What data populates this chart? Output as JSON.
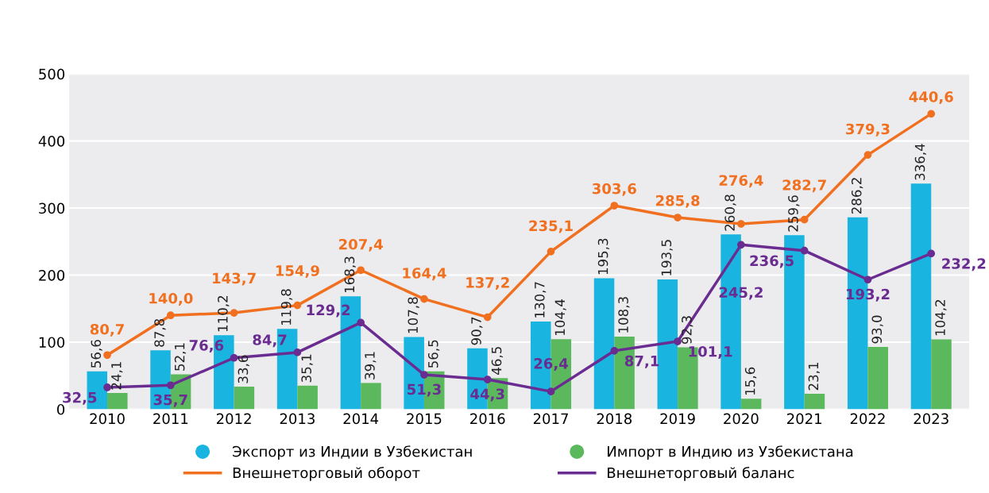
{
  "chart_data": {
    "type": "bar",
    "categories": [
      "2010",
      "2011",
      "2012",
      "2013",
      "2014",
      "2015",
      "2016",
      "2017",
      "2018",
      "2019",
      "2020",
      "2021",
      "2022",
      "2023"
    ],
    "series": [
      {
        "name": "Экспорт из Индии в Узбекистан",
        "color": "#1ab4e0",
        "values": [
          56.6,
          87.8,
          110.2,
          119.8,
          168.3,
          107.8,
          90.7,
          130.7,
          195.3,
          193.5,
          260.8,
          259.6,
          286.2,
          336.4
        ],
        "value_labels": [
          "56,6",
          "87,8",
          "110,2",
          "119,8",
          "168,3",
          "107,8",
          "90,7",
          "130,7",
          "195,3",
          "193,5",
          "260,8",
          "259,6",
          "286,2",
          "336,4"
        ]
      },
      {
        "name": "Импорт в Индию из Узбекистана",
        "color": "#5cb85c",
        "values": [
          24.1,
          52.1,
          33.6,
          35.1,
          39.1,
          56.5,
          46.5,
          104.4,
          108.3,
          92.3,
          15.6,
          23.1,
          93.0,
          104.2
        ],
        "value_labels": [
          "24,1",
          "52,1",
          "33,6",
          "35,1",
          "39,1",
          "56,5",
          "46,5",
          "104,4",
          "108,3",
          "92,3",
          "15,6",
          "23,1",
          "93,0",
          "104,2"
        ]
      },
      {
        "name": "Внешнеторговый оборот",
        "type": "line",
        "color": "#f07020",
        "values": [
          80.7,
          140.0,
          143.7,
          154.9,
          207.4,
          164.4,
          137.2,
          235.1,
          303.6,
          285.8,
          276.4,
          282.7,
          379.3,
          440.6
        ],
        "value_labels": [
          "80,7",
          "140,0",
          "143,7",
          "154,9",
          "207,4",
          "164,4",
          "137,2",
          "235,1",
          "303,6",
          "285,8",
          "276,4",
          "282,7",
          "379,3",
          "440,6"
        ]
      },
      {
        "name": "Внешнеторговый баланс",
        "type": "line",
        "color": "#6a2c91",
        "values": [
          32.5,
          35.7,
          76.6,
          84.7,
          129.2,
          51.3,
          44.3,
          26.4,
          87.1,
          101.1,
          245.2,
          236.5,
          193.2,
          232.2
        ],
        "value_labels": [
          "32,5",
          "35,7",
          "76,6",
          "84,7",
          "129,2",
          "51,3",
          "44,3",
          "26,4",
          "87,1",
          "101,1",
          "245,2",
          "236,5",
          "193,2",
          "232,2"
        ]
      }
    ],
    "ylim": [
      0,
      500
    ],
    "yticks": [
      0,
      100,
      200,
      300,
      400,
      500
    ],
    "grid": "y",
    "legend": "bottom",
    "marker": "circle",
    "line_style": "solid"
  }
}
